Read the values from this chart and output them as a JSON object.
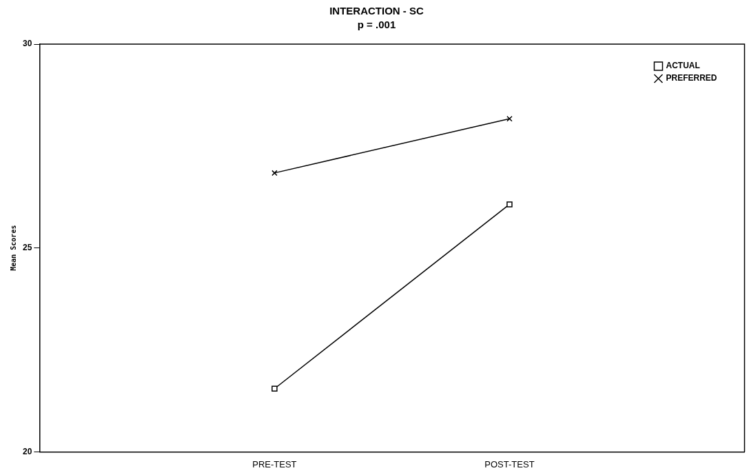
{
  "chart_data": {
    "type": "line",
    "title": "INTERACTION - SC",
    "subtitle": "p = .001",
    "ylabel": "Mean Scores",
    "categories": [
      "PRE-TEST",
      "POST-TEST"
    ],
    "series": [
      {
        "name": "ACTUAL",
        "color": "#000000",
        "marker": "square",
        "values": [
          21.55,
          26.07
        ]
      },
      {
        "name": "PREFERRED",
        "color": "#000000",
        "marker": "cross",
        "values": [
          26.84,
          28.17
        ]
      }
    ],
    "ylim": [
      20,
      30
    ],
    "yticks": [
      20,
      25,
      30
    ],
    "grid": false,
    "legend": "top right",
    "line_style": "solid"
  }
}
